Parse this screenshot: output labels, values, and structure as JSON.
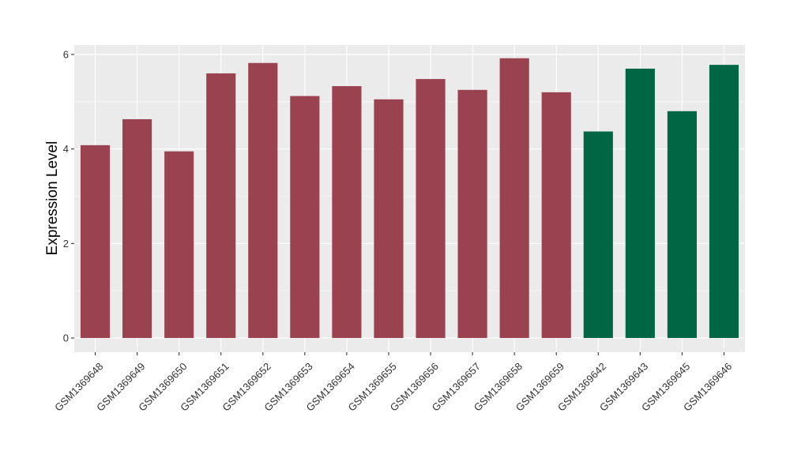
{
  "chart_data": {
    "type": "bar",
    "title": "",
    "xlabel": "",
    "ylabel": "Expression Level",
    "ylim": [
      -0.3,
      6.2
    ],
    "yticks": [
      0,
      2,
      4,
      6
    ],
    "grid": true,
    "legend": "none",
    "categories": [
      "GSM1369648",
      "GSM1369649",
      "GSM1369650",
      "GSM1369651",
      "GSM1369652",
      "GSM1369653",
      "GSM1369654",
      "GSM1369655",
      "GSM1369656",
      "GSM1369657",
      "GSM1369658",
      "GSM1369659",
      "GSM1369642",
      "GSM1369643",
      "GSM1369645",
      "GSM1369646"
    ],
    "values": [
      4.08,
      4.63,
      3.95,
      5.6,
      5.82,
      5.12,
      5.33,
      5.05,
      5.48,
      5.25,
      5.92,
      5.2,
      4.37,
      5.7,
      4.8,
      5.78
    ],
    "bar_groups": [
      "a",
      "a",
      "a",
      "a",
      "a",
      "a",
      "a",
      "a",
      "a",
      "a",
      "a",
      "a",
      "b",
      "b",
      "b",
      "b"
    ],
    "colors": {
      "a": "#9b4250",
      "b": "#006644"
    },
    "panel_background": "#ebebeb",
    "grid_color": "#ffffff"
  }
}
